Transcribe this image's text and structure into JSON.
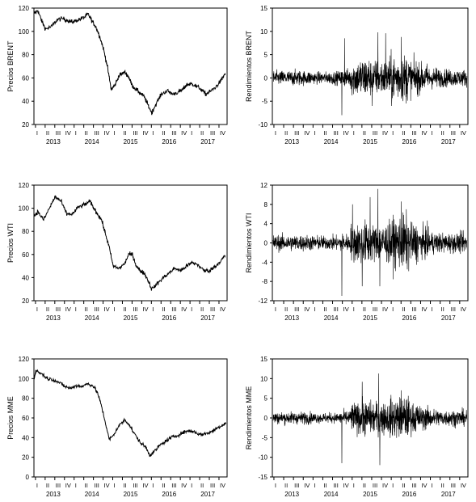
{
  "colors": {
    "line": "#000000",
    "axis": "#000000",
    "background": "#ffffff"
  },
  "chart_data": [
    {
      "type": "line",
      "ylabel": "Precios BRENT",
      "ylim": [
        20,
        120
      ],
      "yticks": [
        20,
        40,
        60,
        80,
        100,
        120
      ],
      "quarter_ticks": [
        "I",
        "II",
        "III",
        "IV",
        "I",
        "II",
        "III",
        "IV",
        "I",
        "II",
        "III",
        "IV",
        "I",
        "II",
        "III",
        "IV",
        "I",
        "II",
        "III",
        "IV"
      ],
      "years": [
        "2013",
        "2014",
        "2015",
        "2016",
        "2017"
      ],
      "series": [
        {
          "x": [
            2013.0,
            2013.1,
            2013.2,
            2013.3,
            2013.45,
            2013.6,
            2013.75,
            2013.9,
            2014.0,
            2014.15,
            2014.3,
            2014.4,
            2014.5,
            2014.6,
            2014.7,
            2014.8,
            2014.9,
            2015.0,
            2015.1,
            2015.2,
            2015.35,
            2015.45,
            2015.55,
            2015.65,
            2015.75,
            2015.85,
            2015.95,
            2016.05,
            2016.15,
            2016.3,
            2016.45,
            2016.6,
            2016.75,
            2016.85,
            2016.95,
            2017.05,
            2017.15,
            2017.3,
            2017.45,
            2017.55,
            2017.7,
            2017.85,
            2017.95
          ],
          "y": [
            115,
            118,
            109,
            102,
            104,
            110,
            111,
            109,
            108,
            110,
            112,
            115,
            109,
            104,
            96,
            85,
            70,
            50,
            54,
            62,
            65,
            61,
            53,
            50,
            47,
            44,
            37,
            30,
            37,
            46,
            49,
            46,
            48,
            50,
            54,
            55,
            54,
            51,
            46,
            48,
            52,
            58,
            64
          ]
        }
      ]
    },
    {
      "type": "line",
      "ylabel": "Rendimientos BRENT",
      "ylim": [
        -10,
        15
      ],
      "yticks": [
        -10,
        -5,
        0,
        5,
        10,
        15
      ],
      "quarter_ticks": [
        "I",
        "II",
        "III",
        "IV",
        "I",
        "II",
        "III",
        "IV",
        "I",
        "II",
        "III",
        "IV",
        "I",
        "II",
        "III",
        "IV",
        "I",
        "II",
        "III",
        "IV"
      ],
      "years": [
        "2013",
        "2014",
        "2015",
        "2016",
        "2017"
      ],
      "volatility": [
        1.2,
        1.2,
        1.3,
        1.2,
        1.0,
        1.0,
        1.1,
        1.5,
        3.0,
        3.5,
        3.0,
        3.0,
        3.8,
        4.0,
        3.0,
        2.4,
        1.8,
        1.5,
        1.4,
        1.4
      ],
      "spikes": [
        [
          2014.85,
          8.5
        ],
        [
          2014.78,
          -8
        ],
        [
          2015.7,
          9.8
        ],
        [
          2015.9,
          9.6
        ],
        [
          2016.3,
          8.8
        ],
        [
          2015.55,
          -6
        ],
        [
          2016.05,
          -6
        ]
      ]
    },
    {
      "type": "line",
      "ylabel": "Precios WTI",
      "ylim": [
        20,
        120
      ],
      "yticks": [
        20,
        40,
        60,
        80,
        100,
        120
      ],
      "quarter_ticks": [
        "I",
        "II",
        "III",
        "IV",
        "I",
        "II",
        "III",
        "IV",
        "I",
        "II",
        "III",
        "IV",
        "I",
        "II",
        "III",
        "IV",
        "I",
        "II",
        "III",
        "IV"
      ],
      "years": [
        "2013",
        "2014",
        "2015",
        "2016",
        "2017"
      ],
      "series": [
        {
          "x": [
            2013.0,
            2013.1,
            2013.25,
            2013.4,
            2013.55,
            2013.7,
            2013.85,
            2014.0,
            2014.15,
            2014.3,
            2014.45,
            2014.55,
            2014.65,
            2014.75,
            2014.85,
            2014.95,
            2015.05,
            2015.2,
            2015.35,
            2015.45,
            2015.55,
            2015.65,
            2015.75,
            2015.85,
            2015.95,
            2016.05,
            2016.2,
            2016.35,
            2016.5,
            2016.65,
            2016.8,
            2016.95,
            2017.1,
            2017.25,
            2017.4,
            2017.55,
            2017.7,
            2017.85,
            2017.95
          ],
          "y": [
            93,
            97,
            90,
            100,
            110,
            106,
            95,
            95,
            101,
            103,
            106,
            100,
            95,
            90,
            78,
            66,
            50,
            48,
            52,
            60,
            60,
            50,
            46,
            44,
            38,
            30,
            35,
            40,
            44,
            48,
            46,
            50,
            53,
            51,
            46,
            46,
            50,
            55,
            59
          ]
        }
      ]
    },
    {
      "type": "line",
      "ylabel": "Rendimientos WTI",
      "ylim": [
        -12,
        12
      ],
      "yticks": [
        -12,
        -8,
        -4,
        0,
        4,
        8,
        12
      ],
      "quarter_ticks": [
        "I",
        "II",
        "III",
        "IV",
        "I",
        "II",
        "III",
        "IV",
        "I",
        "II",
        "III",
        "IV",
        "I",
        "II",
        "III",
        "IV",
        "I",
        "II",
        "III",
        "IV"
      ],
      "years": [
        "2013",
        "2014",
        "2015",
        "2016",
        "2017"
      ],
      "volatility": [
        1.3,
        1.3,
        1.3,
        1.3,
        1.2,
        1.1,
        1.2,
        1.5,
        3.2,
        3.5,
        3.0,
        3.2,
        4.0,
        4.5,
        3.2,
        2.5,
        1.8,
        1.6,
        1.6,
        1.6
      ],
      "spikes": [
        [
          2014.78,
          -11
        ],
        [
          2015.7,
          11.2
        ],
        [
          2015.75,
          -9
        ],
        [
          2015.05,
          8
        ],
        [
          2015.5,
          9.5
        ],
        [
          2016.3,
          8.6
        ],
        [
          2015.3,
          -9
        ]
      ]
    },
    {
      "type": "line",
      "ylabel": "Precios MME",
      "ylim": [
        0,
        120
      ],
      "yticks": [
        0,
        20,
        40,
        60,
        80,
        100,
        120
      ],
      "quarter_ticks": [
        "I",
        "II",
        "III",
        "IV",
        "I",
        "II",
        "III",
        "IV",
        "I",
        "II",
        "III",
        "IV",
        "I",
        "II",
        "III",
        "IV",
        "I",
        "II",
        "III",
        "IV"
      ],
      "years": [
        "2013",
        "2014",
        "2015",
        "2016",
        "2017"
      ],
      "series": [
        {
          "x": [
            2013.0,
            2013.05,
            2013.2,
            2013.35,
            2013.5,
            2013.65,
            2013.8,
            2013.95,
            2014.1,
            2014.25,
            2014.4,
            2014.55,
            2014.65,
            2014.75,
            2014.85,
            2014.95,
            2015.05,
            2015.2,
            2015.35,
            2015.45,
            2015.6,
            2015.75,
            2015.9,
            2016.0,
            2016.1,
            2016.25,
            2016.4,
            2016.55,
            2016.7,
            2016.85,
            2017.0,
            2017.15,
            2017.3,
            2017.45,
            2017.6,
            2017.75,
            2017.9,
            2017.97
          ],
          "y": [
            100,
            108,
            105,
            100,
            99,
            96,
            92,
            90,
            93,
            92,
            95,
            92,
            85,
            72,
            55,
            38,
            42,
            52,
            58,
            54,
            44,
            35,
            30,
            22,
            25,
            32,
            36,
            40,
            42,
            45,
            47,
            46,
            43,
            44,
            46,
            50,
            53,
            55
          ]
        }
      ]
    },
    {
      "type": "line",
      "ylabel": "Rendimientos MME",
      "ylim": [
        -15,
        15
      ],
      "yticks": [
        -15,
        -10,
        -5,
        0,
        5,
        10,
        15
      ],
      "quarter_ticks": [
        "I",
        "II",
        "III",
        "IV",
        "I",
        "II",
        "III",
        "IV",
        "I",
        "II",
        "III",
        "IV",
        "I",
        "II",
        "III",
        "IV",
        "I",
        "II",
        "III",
        "IV"
      ],
      "years": [
        "2013",
        "2014",
        "2015",
        "2016",
        "2017"
      ],
      "volatility": [
        1.2,
        1.2,
        1.2,
        1.2,
        1.0,
        1.0,
        1.0,
        1.5,
        3.0,
        3.5,
        3.2,
        3.2,
        4.0,
        4.2,
        3.0,
        2.3,
        1.8,
        1.6,
        1.6,
        1.6
      ],
      "spikes": [
        [
          2014.78,
          -11.5
        ],
        [
          2015.72,
          11.3
        ],
        [
          2015.75,
          -12
        ],
        [
          2015.3,
          9.2
        ],
        [
          2016.3,
          7
        ]
      ]
    }
  ]
}
